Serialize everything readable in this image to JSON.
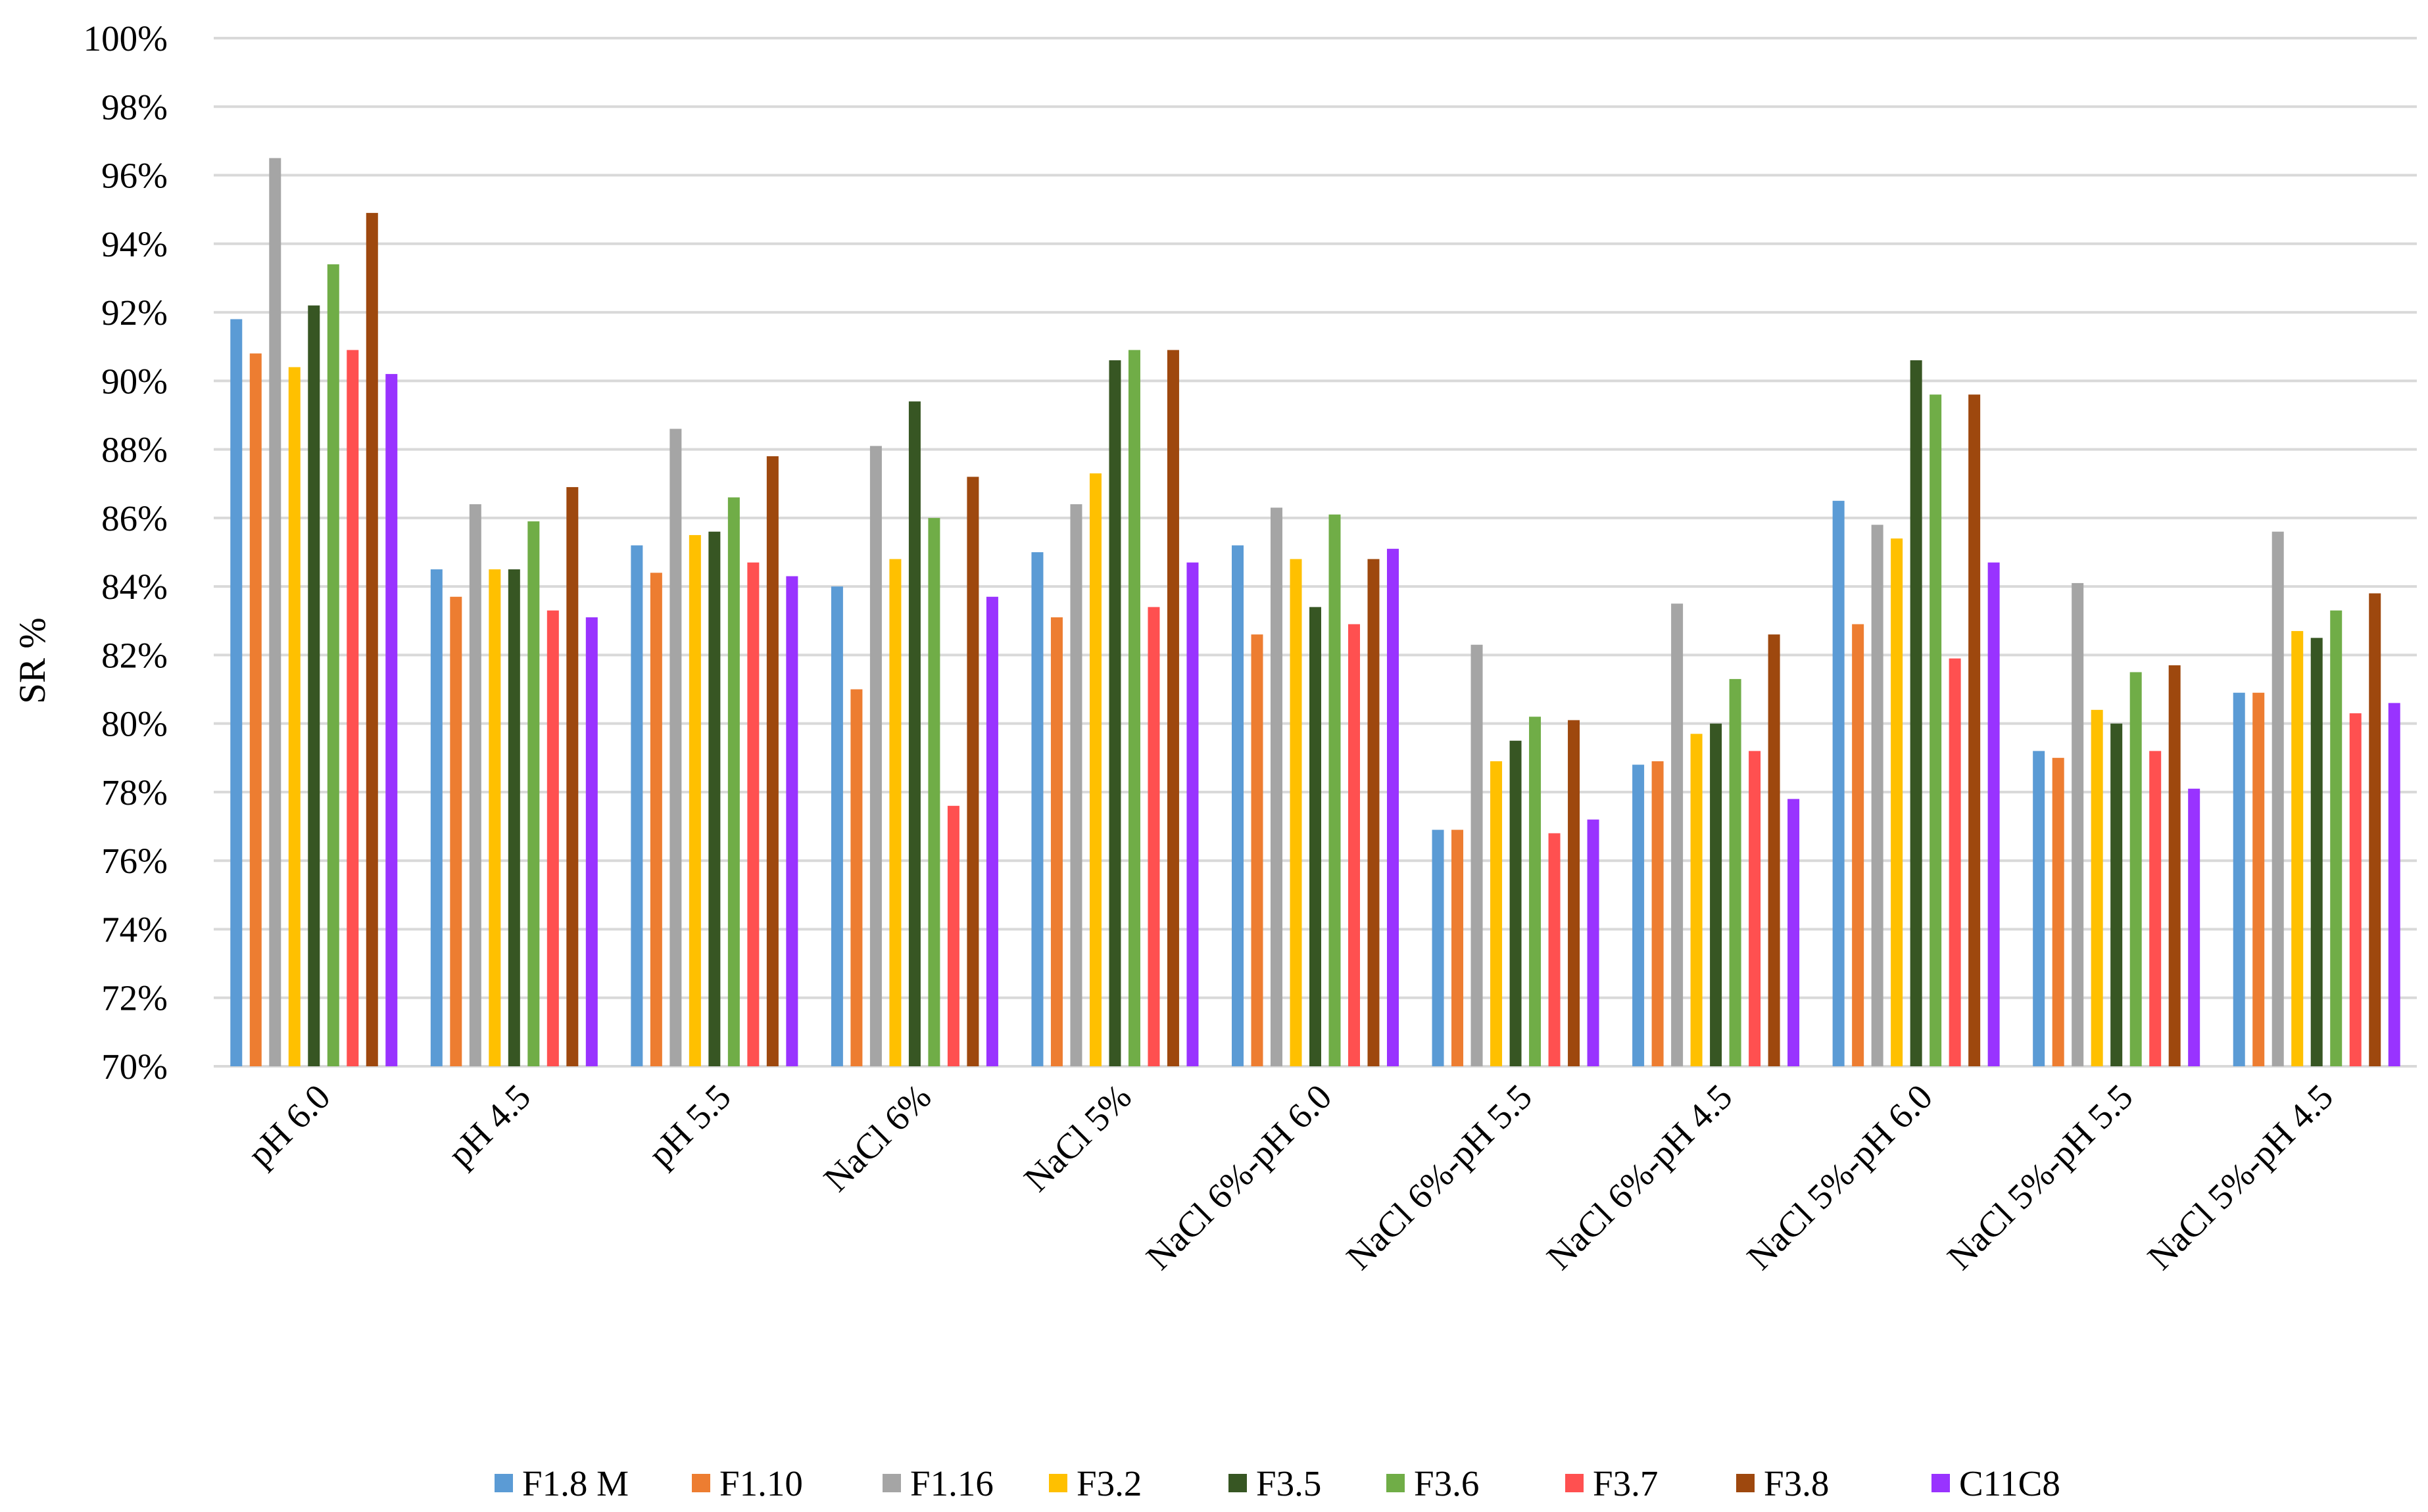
{
  "chart_data": {
    "type": "bar",
    "title": "",
    "xlabel": "",
    "ylabel": "SR %",
    "ylim": [
      70,
      100
    ],
    "ytick_step": 2,
    "ytick_format": "percent",
    "grid": true,
    "legend_position": "bottom",
    "categories": [
      "pH 6.0",
      "pH 4.5",
      "pH 5.5",
      "NaCl 6%",
      "NaCl 5%",
      "NaCl 6%-pH 6.0",
      "NaCl 6%-pH 5.5",
      "NaCl 6%-pH 4.5",
      "NaCl 5%-pH 6.0",
      "NaCl 5%-pH 5.5",
      "NaCl 5%-pH 4.5"
    ],
    "series": [
      {
        "name": "F1.8 M",
        "color": "#5b9bd5",
        "values": [
          91.8,
          84.5,
          85.2,
          84.0,
          85.0,
          85.2,
          76.9,
          78.8,
          86.5,
          79.2,
          80.9
        ]
      },
      {
        "name": "F1.10",
        "color": "#ed7d31",
        "values": [
          90.8,
          83.7,
          84.4,
          81.0,
          83.1,
          82.6,
          76.9,
          78.9,
          82.9,
          79.0,
          80.9
        ]
      },
      {
        "name": "F1.16",
        "color": "#a5a5a5",
        "values": [
          96.5,
          86.4,
          88.6,
          88.1,
          86.4,
          86.3,
          82.3,
          83.5,
          85.8,
          84.1,
          85.6
        ]
      },
      {
        "name": "F3.2",
        "color": "#ffc000",
        "values": [
          90.4,
          84.5,
          85.5,
          84.8,
          87.3,
          84.8,
          78.9,
          79.7,
          85.4,
          80.4,
          82.7
        ]
      },
      {
        "name": "F3.5",
        "color": "#375623",
        "values": [
          92.2,
          84.5,
          85.6,
          89.4,
          90.6,
          83.4,
          79.5,
          80.0,
          90.6,
          80.0,
          82.5
        ]
      },
      {
        "name": "F3.6",
        "color": "#70ad47",
        "values": [
          93.4,
          85.9,
          86.6,
          86.0,
          90.9,
          86.1,
          80.2,
          81.3,
          89.6,
          81.5,
          83.3
        ]
      },
      {
        "name": "F3.7",
        "color": "#ff5050",
        "values": [
          90.9,
          83.3,
          84.7,
          77.6,
          83.4,
          82.9,
          76.8,
          79.2,
          81.9,
          79.2,
          80.3
        ]
      },
      {
        "name": "F3.8",
        "color": "#9e480e",
        "values": [
          94.9,
          86.9,
          87.8,
          87.2,
          90.9,
          84.8,
          80.1,
          82.6,
          89.6,
          81.7,
          83.8
        ]
      },
      {
        "name": "C11C8",
        "color": "#9933ff",
        "values": [
          90.2,
          83.1,
          84.3,
          83.7,
          84.7,
          85.1,
          77.2,
          77.8,
          84.7,
          78.1,
          80.6
        ]
      }
    ]
  }
}
